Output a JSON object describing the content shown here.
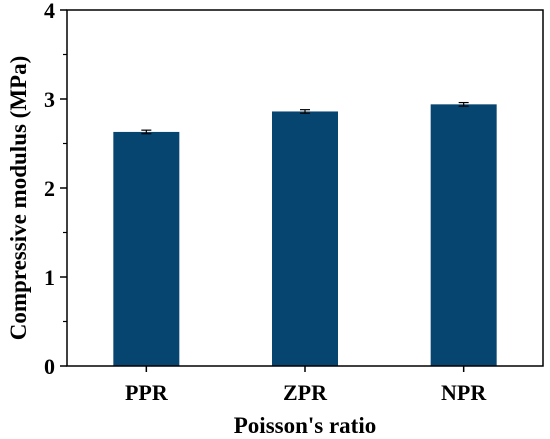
{
  "chart_data": {
    "type": "bar",
    "title": "",
    "xlabel": "Poisson's ratio",
    "ylabel": "Compressive modulus (MPa)",
    "categories": [
      "PPR",
      "ZPR",
      "NPR"
    ],
    "values": [
      2.63,
      2.86,
      2.94
    ],
    "errors": [
      0.02,
      0.02,
      0.02
    ],
    "ylim": [
      0,
      4
    ],
    "yticks": [
      "0",
      "1",
      "2",
      "3",
      "4"
    ],
    "grid": false,
    "legend": "none",
    "bar_color": "#064570",
    "error_bar_color": "#000000",
    "axis_color": "#000000"
  }
}
